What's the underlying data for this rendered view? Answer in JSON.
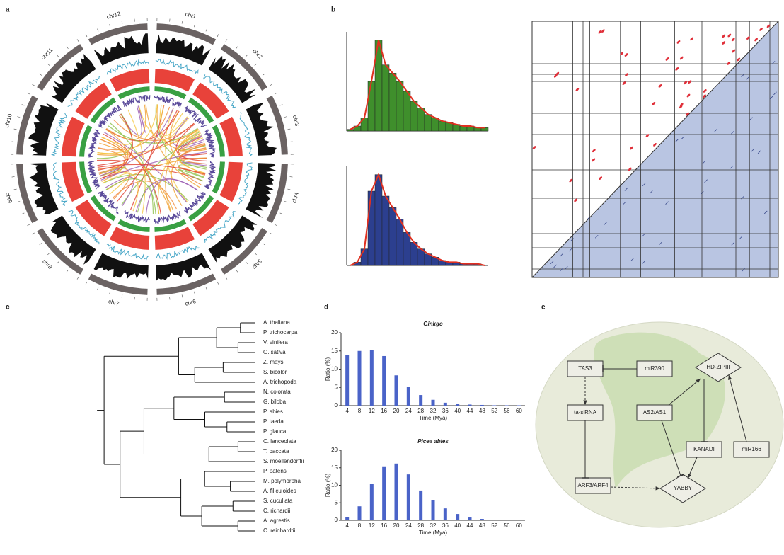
{
  "panel_labels": [
    "a",
    "b",
    "c",
    "d",
    "e"
  ],
  "circos": {
    "chromosomes": [
      "chr1",
      "chr2",
      "chr3",
      "chr4",
      "chr5",
      "chr6",
      "chr7",
      "chr8",
      "chr9",
      "chr10",
      "chr11",
      "chr12"
    ]
  },
  "tree": {
    "leaves": [
      "A. thaliana",
      "P. trichocarpa",
      "V. vinifera",
      "O. sativa",
      "Z. mays",
      "S. bicolor",
      "A. trichopoda",
      "N. colorata",
      "G. biloba",
      "P. abies",
      "P. taeda",
      "P. glauca",
      "C. lanceolata",
      "T. baccata",
      "S. moellendorffii",
      "P. patens",
      "M. polymorpha",
      "A. filiculoides",
      "S. cucullata",
      "C. richardii",
      "A. agrestis",
      "C. reinhardtii"
    ]
  },
  "network": {
    "nodes": [
      "TAS3",
      "miR390",
      "HD-ZIPIII",
      "ta-siRNA",
      "AS2/AS1",
      "KANADI",
      "miR166",
      "ARF3/ARF4",
      "YABBY"
    ]
  },
  "chart_data": [
    {
      "type": "histogram",
      "color": "#3f8f2c",
      "bins": [
        0,
        0.2,
        0.4,
        0.6,
        0.8,
        1.0,
        1.2,
        1.4,
        1.6,
        1.8,
        2.0,
        2.2,
        2.4,
        2.6,
        2.8,
        3.0,
        3.2,
        3.4,
        3.6,
        3.8,
        4.0
      ],
      "values": [
        1,
        3,
        8,
        30,
        55,
        40,
        35,
        30,
        24,
        18,
        14,
        10,
        8,
        6,
        5,
        4,
        3,
        3,
        2,
        2
      ],
      "xlim": [
        0,
        4
      ],
      "ylim": [
        0,
        60
      ]
    },
    {
      "type": "histogram",
      "color": "#2c3f8f",
      "bins": [
        0,
        0.2,
        0.4,
        0.6,
        0.8,
        1.0,
        1.2,
        1.4,
        1.6,
        1.8,
        2.0,
        2.2,
        2.4,
        2.6,
        2.8,
        3.0,
        3.2,
        3.4,
        3.6,
        3.8,
        4.0
      ],
      "values": [
        0,
        2,
        10,
        45,
        55,
        42,
        35,
        28,
        20,
        14,
        10,
        7,
        5,
        3,
        2,
        2,
        1,
        1,
        1,
        0
      ],
      "xlim": [
        0,
        4
      ],
      "ylim": [
        0,
        60
      ]
    },
    {
      "type": "bar",
      "title": "Ginkgo",
      "x_label": "Time (Mya)",
      "y_label": "Ratio (%)",
      "color": "#4a63c8",
      "categories": [
        4,
        8,
        12,
        16,
        20,
        24,
        28,
        32,
        36,
        40,
        44,
        48,
        52,
        56,
        60
      ],
      "values": [
        13.8,
        15,
        15.3,
        13.6,
        8.3,
        5.2,
        2.9,
        1.6,
        0.8,
        0.4,
        0.3,
        0.2,
        0.1,
        0.1,
        0.1
      ],
      "ylim": [
        0,
        20
      ],
      "yticks": [
        0,
        5,
        10,
        15,
        20
      ]
    },
    {
      "type": "bar",
      "title": "Picea abies",
      "x_label": "Time (Mya)",
      "y_label": "Ratio (%)",
      "color": "#4a63c8",
      "categories": [
        4,
        8,
        12,
        16,
        20,
        24,
        28,
        32,
        36,
        40,
        44,
        48,
        52,
        56,
        60
      ],
      "values": [
        1,
        4,
        10.5,
        15.4,
        16.2,
        13.1,
        8.5,
        5.7,
        3.4,
        1.8,
        0.8,
        0.4,
        0.2,
        0.1,
        0.1
      ],
      "ylim": [
        0,
        20
      ],
      "yticks": [
        0,
        5,
        10,
        15,
        20
      ]
    }
  ]
}
